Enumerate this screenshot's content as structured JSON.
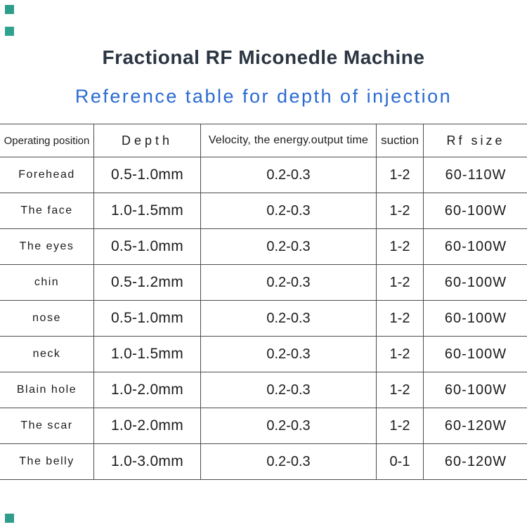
{
  "page": {
    "title": "Fractional RF Miconedle Machine",
    "subtitle": "Reference table for depth of injection",
    "title_color": "#2b3542",
    "subtitle_color": "#2a6bd2",
    "marker_color": "#2f9d8c",
    "border_color": "#4d4d4d"
  },
  "table": {
    "headers": [
      "Operating position",
      "Depth",
      "Velocity, the energy.output time",
      "suction",
      "Rf size"
    ],
    "rows": [
      [
        "Forehead",
        "0.5-1.0mm",
        "0.2-0.3",
        "1-2",
        "60-110W"
      ],
      [
        "The face",
        "1.0-1.5mm",
        "0.2-0.3",
        "1-2",
        "60-100W"
      ],
      [
        "The eyes",
        "0.5-1.0mm",
        "0.2-0.3",
        "1-2",
        "60-100W"
      ],
      [
        "chin",
        "0.5-1.2mm",
        "0.2-0.3",
        "1-2",
        "60-100W"
      ],
      [
        "nose",
        "0.5-1.0mm",
        "0.2-0.3",
        "1-2",
        "60-100W"
      ],
      [
        "neck",
        "1.0-1.5mm",
        "0.2-0.3",
        "1-2",
        "60-100W"
      ],
      [
        "Blain hole",
        "1.0-2.0mm",
        "0.2-0.3",
        "1-2",
        "60-100W"
      ],
      [
        "The scar",
        "1.0-2.0mm",
        "0.2-0.3",
        "1-2",
        "60-120W"
      ],
      [
        "The belly",
        "1.0-3.0mm",
        "0.2-0.3",
        "0-1",
        "60-120W"
      ]
    ]
  }
}
